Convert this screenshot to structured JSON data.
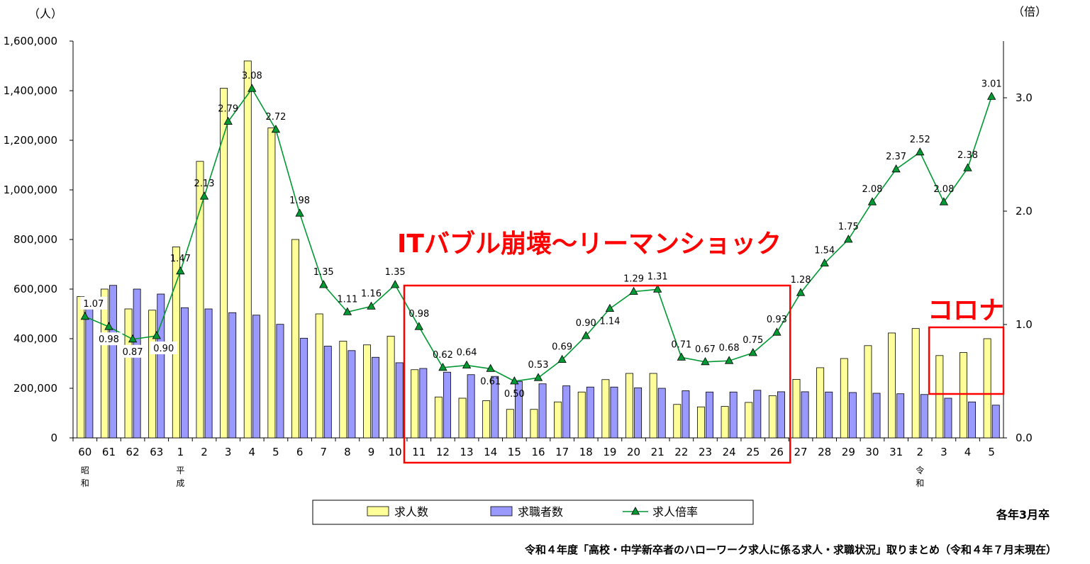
{
  "chart_data": {
    "type": "bar",
    "left_axis_unit": "（人）",
    "right_axis_unit": "（倍）",
    "left_ticks": [
      "0",
      "200,000",
      "400,000",
      "600,000",
      "800,000",
      "1,000,000",
      "1,200,000",
      "1,400,000",
      "1,600,000"
    ],
    "right_ticks": [
      "0.0",
      "1.0",
      "2.0",
      "3.0"
    ],
    "ylim_left": [
      0,
      1600000
    ],
    "ylim_right": [
      0,
      3.5
    ],
    "categories": [
      "60",
      "61",
      "62",
      "63",
      "1",
      "2",
      "3",
      "4",
      "5",
      "6",
      "7",
      "8",
      "9",
      "10",
      "11",
      "12",
      "13",
      "14",
      "15",
      "16",
      "17",
      "18",
      "19",
      "20",
      "21",
      "22",
      "23",
      "24",
      "25",
      "26",
      "27",
      "28",
      "29",
      "30",
      "31",
      "2",
      "3",
      "4",
      "5"
    ],
    "era_labels": [
      {
        "index": 0,
        "text": "昭和"
      },
      {
        "index": 4,
        "text": "平成"
      },
      {
        "index": 35,
        "text": "令和"
      }
    ],
    "series": [
      {
        "name": "求人数",
        "type": "bar",
        "color": "#ffff99",
        "values": [
          570000,
          600000,
          520000,
          515000,
          770000,
          1115000,
          1410000,
          1520000,
          1250000,
          800000,
          500000,
          390000,
          375000,
          410000,
          275000,
          165000,
          160000,
          150000,
          115000,
          115000,
          145000,
          185000,
          235000,
          260000,
          260000,
          135000,
          125000,
          127000,
          143000,
          170000,
          236000,
          283000,
          320000,
          372000,
          423000,
          441000,
          332000,
          344000,
          400000
        ]
      },
      {
        "name": "求職者数",
        "type": "bar",
        "color": "#9999ff",
        "values": [
          535000,
          615000,
          600000,
          580000,
          525000,
          520000,
          505000,
          495000,
          458000,
          402000,
          370000,
          352000,
          325000,
          303000,
          280000,
          265000,
          255000,
          248000,
          228000,
          218000,
          210000,
          205000,
          205000,
          202000,
          200000,
          190000,
          185000,
          185000,
          192000,
          186000,
          186000,
          185000,
          183000,
          180000,
          178000,
          175000,
          160000,
          145000,
          132000
        ]
      },
      {
        "name": "求人倍率",
        "type": "line",
        "color": "#009933",
        "axis": "right",
        "values": [
          1.07,
          0.98,
          0.87,
          0.9,
          1.47,
          2.13,
          2.79,
          3.08,
          2.72,
          1.98,
          1.35,
          1.11,
          1.16,
          1.35,
          0.98,
          0.62,
          0.64,
          0.61,
          0.5,
          0.53,
          0.69,
          0.9,
          1.14,
          1.29,
          1.31,
          0.71,
          0.67,
          0.68,
          0.75,
          0.93,
          1.28,
          1.54,
          1.75,
          2.08,
          2.37,
          2.52,
          2.08,
          2.38,
          3.01
        ],
        "labels": [
          "1.07",
          "0.98",
          "0.87",
          "0.90",
          "1.47",
          "2.13",
          "2.79",
          "3.08",
          "2.72",
          "1.98",
          "1.35",
          "1.11",
          "1.16",
          "1.35",
          "0.98",
          "0.62",
          "0.64",
          "0.61",
          "0.50",
          "0.53",
          "0.69",
          "0.90",
          "1.14",
          "1.29",
          "1.31",
          "0.71",
          "0.67",
          "0.68",
          "0.75",
          "0.93",
          "1.28",
          "1.54",
          "1.75",
          "2.08",
          "2.37",
          "2.52",
          "2.08",
          "2.38",
          "3.01"
        ]
      }
    ],
    "annotations": [
      {
        "text": "ITバブル崩壊～リーマンショック",
        "color": "#ff0000",
        "box_from_index": 14,
        "box_to_index": 29
      },
      {
        "text": "コロナ",
        "color": "#ff0000",
        "box_from_index": 36,
        "box_to_index": 38
      }
    ],
    "legend": {
      "placement": "bottom",
      "items": [
        "求人数",
        "求職者数",
        "求人倍率"
      ]
    },
    "note": "各年3月卒",
    "source": "令和４年度「高校・中学新卒者のハローワーク求人に係る求人・求職状況」取りまとめ（令和４年７月末現在）"
  }
}
